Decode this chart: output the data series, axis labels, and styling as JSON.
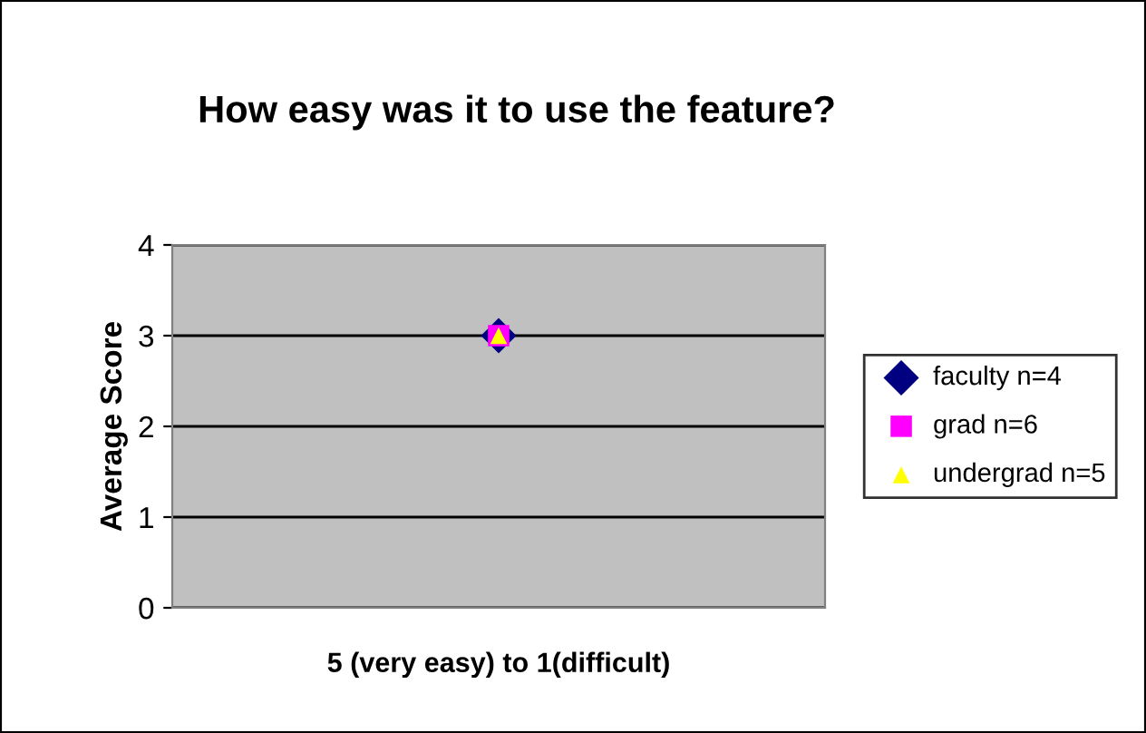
{
  "chart_data": {
    "type": "scatter",
    "title": "How easy was it to use the feature?",
    "xlabel": "5 (very easy) to 1(difficult)",
    "ylabel": "Average Score",
    "categories": [
      null
    ],
    "ylim": [
      0,
      4
    ],
    "yticks": [
      0,
      1,
      2,
      3,
      4
    ],
    "grid": "y",
    "legend": "right",
    "series": [
      {
        "name": "faculty n=4",
        "color": "#000080",
        "marker": "diamond",
        "values": [
          3
        ]
      },
      {
        "name": "grad n=6",
        "color": "#ff00ff",
        "marker": "square",
        "values": [
          3
        ]
      },
      {
        "name": "undergrad n=5",
        "color": "#ffff00",
        "marker": "triangle",
        "values": [
          3
        ]
      }
    ]
  }
}
